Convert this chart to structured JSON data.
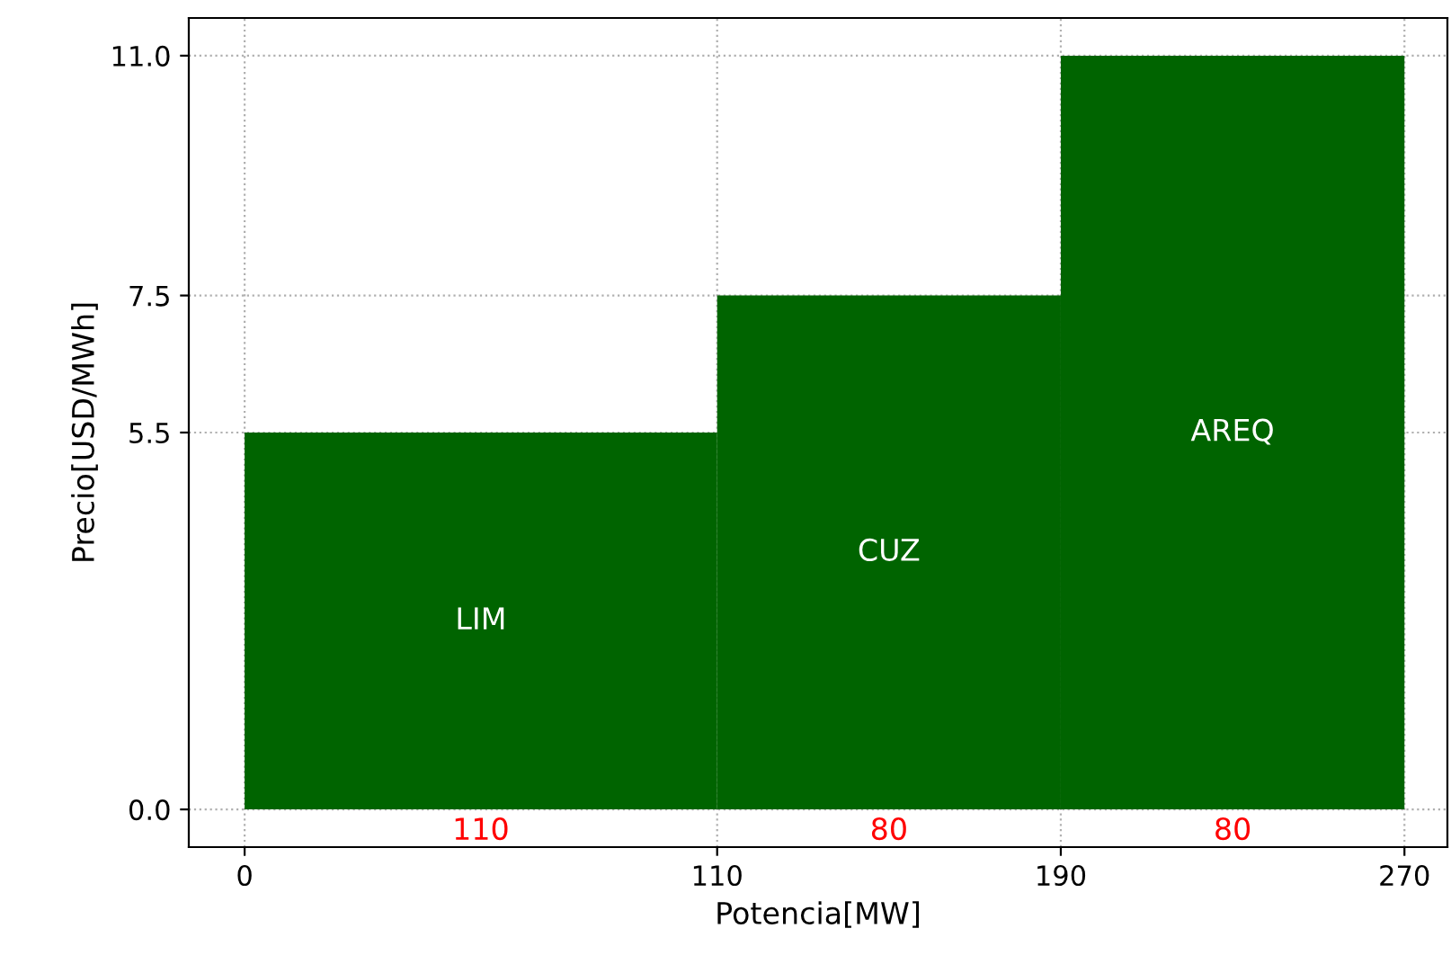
{
  "chart_data": {
    "type": "histogram",
    "xlabel": "Potencia[MW]",
    "ylabel": "Precio[USD/MWh]",
    "bins": [
      0,
      110,
      190,
      270
    ],
    "values": [
      5.5,
      7.5,
      11.0
    ],
    "color": "#006400",
    "xlim": [
      -13,
      280
    ],
    "ylim": [
      -0.55,
      11.55
    ],
    "xticks": [
      0,
      110,
      190,
      270
    ],
    "yticks": [
      {
        "value": 0,
        "label": "0.0"
      },
      5.5,
      7.5,
      {
        "value": 11,
        "label": "11.0"
      }
    ],
    "grid": true,
    "annotations": [
      "LIM",
      "CUZ",
      "AREQ",
      "110",
      "80",
      "80"
    ]
  }
}
